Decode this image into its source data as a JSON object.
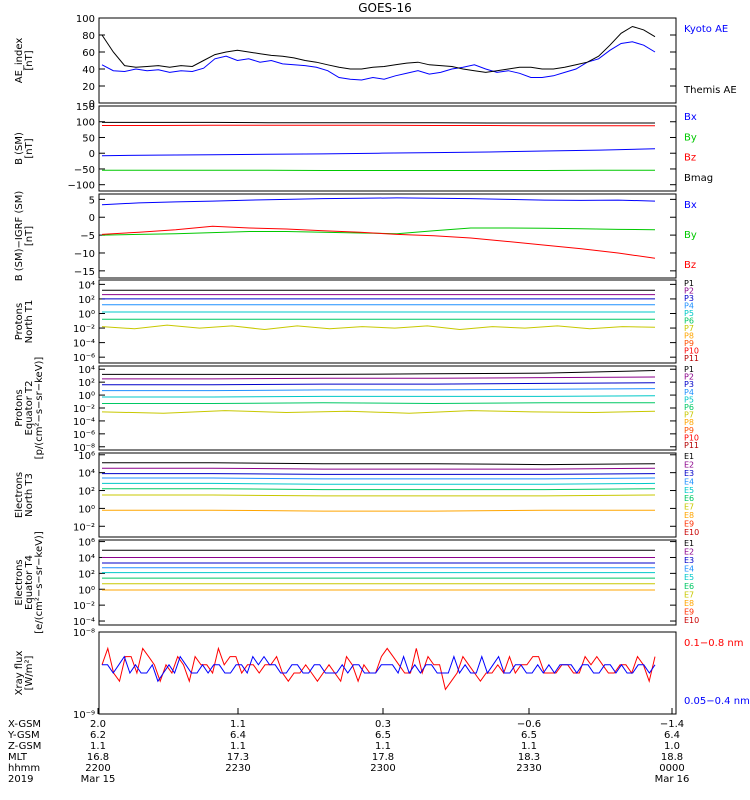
{
  "title": "GOES-16",
  "colors": {
    "black": "#000000",
    "blue": "#0000ff",
    "green": "#00c800",
    "red": "#ff0000"
  },
  "chart_data": [
    {
      "type": "line",
      "ylabel": [
        "AE_index",
        "[nT]"
      ],
      "yticks": [
        "100",
        "80",
        "60",
        "40",
        "20",
        "0"
      ],
      "ylim": [
        0,
        100
      ],
      "legend": [
        "Kyoto AE",
        "Themis AE"
      ],
      "legend_colors": [
        "#0000ff",
        "#000000"
      ],
      "series": [
        {
          "name": "Kyoto AE",
          "color": "#0000ff",
          "values": [
            45,
            38,
            37,
            40,
            38,
            39,
            36,
            38,
            37,
            41,
            52,
            55,
            50,
            52,
            48,
            50,
            46,
            45,
            44,
            42,
            38,
            30,
            28,
            27,
            30,
            28,
            32,
            35,
            38,
            34,
            36,
            40,
            42,
            45,
            40,
            36,
            38,
            35,
            30,
            30,
            32,
            36,
            40,
            48,
            52,
            62,
            70,
            72,
            68,
            60
          ]
        },
        {
          "name": "Themis AE",
          "color": "#000000",
          "values": [
            80,
            60,
            44,
            42,
            43,
            44,
            42,
            44,
            43,
            50,
            57,
            60,
            62,
            60,
            58,
            56,
            55,
            53,
            50,
            48,
            45,
            42,
            40,
            40,
            42,
            43,
            45,
            47,
            48,
            45,
            44,
            43,
            40,
            38,
            36,
            38,
            40,
            42,
            42,
            40,
            40,
            42,
            45,
            48,
            55,
            68,
            82,
            90,
            86,
            78
          ]
        }
      ]
    },
    {
      "type": "line",
      "ylabel": [
        "B (SM)",
        "[nT]"
      ],
      "yticks": [
        "150",
        "100",
        "50",
        "0",
        "−50",
        "−100"
      ],
      "ylim": [
        -120,
        150
      ],
      "legend": [
        "Bx",
        "By",
        "Bz",
        "Bmag"
      ],
      "legend_colors": [
        "#0000ff",
        "#00c800",
        "#ff0000",
        "#000000"
      ],
      "series": [
        {
          "name": "Bmag",
          "color": "#000000",
          "values": [
            98,
            98,
            98,
            97,
            97,
            97,
            97,
            96,
            96,
            96,
            96
          ]
        },
        {
          "name": "Bz",
          "color": "#ff0000",
          "values": [
            88,
            88,
            89,
            89,
            89,
            89,
            88,
            88,
            87,
            87,
            87
          ]
        },
        {
          "name": "Bx",
          "color": "#0000ff",
          "values": [
            -8,
            -6,
            -5,
            -3,
            -2,
            0,
            2,
            4,
            7,
            10,
            14
          ]
        },
        {
          "name": "By",
          "color": "#00c800",
          "values": [
            -54,
            -54,
            -54,
            -54,
            -55,
            -55,
            -55,
            -55,
            -55,
            -54,
            -54
          ]
        }
      ]
    },
    {
      "type": "line",
      "ylabel": [
        "B (SM)−IGRF (SM)",
        "[nT]"
      ],
      "yticks": [
        "5",
        "0",
        "−5",
        "−10",
        "−15"
      ],
      "ylim": [
        -17,
        6.5
      ],
      "legend": [
        "Bx",
        "By",
        "Bz"
      ],
      "legend_colors": [
        "#0000ff",
        "#00c800",
        "#ff0000"
      ],
      "series": [
        {
          "name": "Bx",
          "color": "#0000ff",
          "values": [
            3.5,
            4.0,
            4.3,
            4.5,
            4.8,
            5.0,
            5.2,
            5.3,
            5.4,
            5.3,
            5.2,
            5.0,
            4.8,
            4.7,
            4.8,
            4.5
          ]
        },
        {
          "name": "By",
          "color": "#00c800",
          "values": [
            -5.0,
            -4.8,
            -4.6,
            -4.3,
            -4.0,
            -4.0,
            -4.2,
            -4.4,
            -4.6,
            -3.8,
            -3.0,
            -3.0,
            -3.1,
            -3.2,
            -3.4,
            -3.5
          ]
        },
        {
          "name": "Bz",
          "color": "#ff0000",
          "values": [
            -4.8,
            -4.2,
            -3.5,
            -2.5,
            -3.0,
            -3.3,
            -3.8,
            -4.2,
            -4.8,
            -5.2,
            -5.8,
            -6.8,
            -7.8,
            -8.8,
            -10.0,
            -11.5
          ]
        }
      ]
    },
    {
      "type": "line",
      "scale": "log",
      "ylabel": [
        "Protons",
        "North T1"
      ],
      "yticks": [
        "10⁴",
        "10²",
        "10⁰",
        "10⁻²",
        "10⁻⁴",
        "10⁻⁶"
      ],
      "ylim_exp": [
        -6.8,
        4.6
      ],
      "legend": [
        "P1",
        "P2",
        "P3",
        "P4",
        "P5",
        "P6",
        "P7",
        "P8",
        "P9",
        "P10",
        "P11"
      ],
      "legend_colors": [
        "#000000",
        "#8b008b",
        "#0000c8",
        "#1e90ff",
        "#00c8c8",
        "#00c864",
        "#c8c800",
        "#ffa500",
        "#ff5000",
        "#ff0000",
        "#b40000"
      ],
      "series": [
        {
          "name": "P1",
          "color": "#000000",
          "values": [
            3.2,
            3.2
          ]
        },
        {
          "name": "P2",
          "color": "#8b008b",
          "values": [
            2.6,
            2.6
          ]
        },
        {
          "name": "P3",
          "color": "#0000c8",
          "values": [
            2.0,
            2.0
          ]
        },
        {
          "name": "P4",
          "color": "#1e90ff",
          "values": [
            1.2,
            1.2
          ]
        },
        {
          "name": "P5",
          "color": "#00c8c8",
          "values": [
            0.2,
            0.2
          ]
        },
        {
          "name": "P6",
          "color": "#00c864",
          "values": [
            -0.8,
            -0.8
          ]
        },
        {
          "name": "P7",
          "color": "#c8c800",
          "values": [
            -1.8,
            -2.1,
            -1.6,
            -2.0,
            -1.7,
            -2.2,
            -1.7,
            -2.1,
            -1.8,
            -2.0,
            -1.7,
            -2.2,
            -1.8,
            -2.0,
            -1.7,
            -2.1,
            -1.8,
            -1.9
          ]
        }
      ]
    },
    {
      "type": "line",
      "scale": "log",
      "ylabel": [
        "Protons",
        "Equator T2",
        "[p/(cm²−s−sr−keV)]"
      ],
      "yticks": [
        "10⁴",
        "10²",
        "10⁰",
        "10⁻²",
        "10⁻⁴",
        "10⁻⁶",
        "10⁻⁸"
      ],
      "ylim_exp": [
        -8.5,
        4.5
      ],
      "legend": [
        "P1",
        "P2",
        "P3",
        "P4",
        "P5",
        "P6",
        "P7",
        "P8",
        "P9",
        "P10",
        "P11"
      ],
      "legend_colors": [
        "#000000",
        "#8b008b",
        "#0000c8",
        "#1e90ff",
        "#00c8c8",
        "#00c864",
        "#c8c800",
        "#ffa500",
        "#ff5000",
        "#ff0000",
        "#b40000"
      ],
      "series": [
        {
          "name": "P1",
          "color": "#000000",
          "values": [
            3.2,
            3.2,
            3.2,
            3.3,
            3.4,
            3.8
          ]
        },
        {
          "name": "P2",
          "color": "#8b008b",
          "values": [
            2.5,
            2.5,
            2.6,
            2.6,
            2.7,
            2.8
          ]
        },
        {
          "name": "P3",
          "color": "#0000c8",
          "values": [
            1.6,
            1.6,
            1.7,
            1.7,
            1.8,
            1.9
          ]
        },
        {
          "name": "P4",
          "color": "#1e90ff",
          "values": [
            0.7,
            0.7,
            0.8,
            0.8,
            0.9,
            1.0
          ]
        },
        {
          "name": "P5",
          "color": "#00c8c8",
          "values": [
            -0.3,
            -0.3,
            -0.2,
            -0.2,
            -0.2,
            -0.1
          ]
        },
        {
          "name": "P6",
          "color": "#00c864",
          "values": [
            -1.3,
            -1.3,
            -1.2,
            -1.3,
            -1.2,
            -1.2
          ]
        },
        {
          "name": "P7",
          "color": "#c8c800",
          "values": [
            -2.6,
            -2.8,
            -2.4,
            -2.7,
            -2.5,
            -2.8,
            -2.4,
            -2.6,
            -2.7,
            -2.5
          ]
        }
      ]
    },
    {
      "type": "line",
      "scale": "log",
      "ylabel": [
        "Electrons",
        "North T3"
      ],
      "yticks": [
        "10⁶",
        "10⁴",
        "10²",
        "10⁰",
        "10⁻²"
      ],
      "ylim_exp": [
        -3.2,
        6.2
      ],
      "legend": [
        "E1",
        "E2",
        "E3",
        "E4",
        "E5",
        "E6",
        "E7",
        "E8",
        "E9",
        "E10"
      ],
      "legend_colors": [
        "#000000",
        "#8b008b",
        "#0000c8",
        "#1e90ff",
        "#00c8c8",
        "#00c864",
        "#c8c800",
        "#ffa500",
        "#ff3000",
        "#c80000"
      ],
      "series": [
        {
          "name": "E1",
          "color": "#000000",
          "values": [
            5.1,
            5.1,
            5.0,
            5.0,
            4.9,
            5.0
          ]
        },
        {
          "name": "E2",
          "color": "#8b008b",
          "values": [
            4.5,
            4.5,
            4.4,
            4.4,
            4.4,
            4.5
          ]
        },
        {
          "name": "E3",
          "color": "#0000c8",
          "values": [
            3.9,
            3.9,
            3.8,
            3.8,
            3.8,
            3.9
          ]
        },
        {
          "name": "E4",
          "color": "#1e90ff",
          "values": [
            3.4,
            3.4,
            3.3,
            3.3,
            3.3,
            3.4
          ]
        },
        {
          "name": "E5",
          "color": "#00c8c8",
          "values": [
            2.8,
            2.8,
            2.7,
            2.7,
            2.7,
            2.8
          ]
        },
        {
          "name": "E6",
          "color": "#00c864",
          "values": [
            2.2,
            2.2,
            2.1,
            2.1,
            2.1,
            2.2
          ]
        },
        {
          "name": "E7",
          "color": "#c8c800",
          "values": [
            1.5,
            1.5,
            1.4,
            1.4,
            1.4,
            1.5
          ]
        },
        {
          "name": "E8",
          "color": "#ffa500",
          "values": [
            -0.2,
            -0.2,
            -0.3,
            -0.3,
            -0.2,
            -0.2
          ]
        }
      ]
    },
    {
      "type": "line",
      "scale": "log",
      "ylabel": [
        "Electrons",
        "Equator T4",
        "[e/(cm²−s−sr−keV)]"
      ],
      "yticks": [
        "10⁶",
        "10⁴",
        "10²",
        "10⁰",
        "10⁻²",
        "10⁻⁴"
      ],
      "ylim_exp": [
        -4.5,
        6.2
      ],
      "legend": [
        "E1",
        "E2",
        "E3",
        "E4",
        "E5",
        "E6",
        "E7",
        "E8",
        "E9",
        "E10"
      ],
      "legend_colors": [
        "#000000",
        "#8b008b",
        "#0000c8",
        "#1e90ff",
        "#00c8c8",
        "#00c864",
        "#c8c800",
        "#ffa500",
        "#ff3000",
        "#c80000"
      ],
      "series": [
        {
          "name": "E1",
          "color": "#000000",
          "values": [
            4.9,
            4.9,
            4.9,
            4.9,
            4.9,
            4.9
          ]
        },
        {
          "name": "E2",
          "color": "#8b008b",
          "values": [
            4.0,
            4.0,
            4.0,
            4.0,
            4.0,
            4.0
          ]
        },
        {
          "name": "E3",
          "color": "#0000c8",
          "values": [
            3.3,
            3.3,
            3.3,
            3.3,
            3.3,
            3.3
          ]
        },
        {
          "name": "E4",
          "color": "#1e90ff",
          "values": [
            2.7,
            2.7,
            2.7,
            2.7,
            2.7,
            2.7
          ]
        },
        {
          "name": "E5",
          "color": "#00c8c8",
          "values": [
            2.1,
            2.1,
            2.1,
            2.1,
            2.1,
            2.1
          ]
        },
        {
          "name": "E6",
          "color": "#00c864",
          "values": [
            1.4,
            1.4,
            1.4,
            1.4,
            1.4,
            1.4
          ]
        },
        {
          "name": "E7",
          "color": "#c8c800",
          "values": [
            0.7,
            0.7,
            0.7,
            0.7,
            0.7,
            0.7
          ]
        },
        {
          "name": "E8",
          "color": "#ffa500",
          "values": [
            -0.1,
            -0.1,
            -0.1,
            -0.1,
            -0.1,
            -0.1
          ]
        }
      ]
    },
    {
      "type": "line",
      "scale": "log",
      "ylabel": [
        "Xray flux",
        "[W/m²]"
      ],
      "yticks": [
        "10⁻⁸",
        "10⁻⁹"
      ],
      "ylim_exp": [
        -9,
        -8
      ],
      "legend": [
        "0.1−0.8 nm",
        "0.05−0.4 nm"
      ],
      "legend_colors": [
        "#ff0000",
        "#0000ff"
      ],
      "series": [
        {
          "name": "0.1−0.8 nm",
          "color": "#ff0000",
          "values": [
            -8.4,
            -8.2,
            -8.5,
            -8.6,
            -8.3,
            -8.3,
            -8.5,
            -8.2,
            -8.3,
            -8.4,
            -8.6,
            -8.4,
            -8.5,
            -8.3,
            -8.4,
            -8.6,
            -8.3,
            -8.4,
            -8.4,
            -8.5,
            -8.2,
            -8.4,
            -8.3,
            -8.3,
            -8.5,
            -8.4,
            -8.4,
            -8.5,
            -8.4,
            -8.4,
            -8.3,
            -8.5,
            -8.6,
            -8.5,
            -8.5,
            -8.4,
            -8.5,
            -8.6,
            -8.5,
            -8.4,
            -8.5,
            -8.6,
            -8.3,
            -8.4,
            -8.6,
            -8.4,
            -8.5,
            -8.5,
            -8.3,
            -8.2,
            -8.3,
            -8.4,
            -8.5,
            -8.5,
            -8.2,
            -8.5,
            -8.3,
            -8.4,
            -8.4,
            -8.7,
            -8.6,
            -8.5,
            -8.3,
            -8.4,
            -8.5,
            -8.6,
            -8.5,
            -8.5,
            -8.4,
            -8.5,
            -8.3,
            -8.5,
            -8.4,
            -8.4,
            -8.3,
            -8.3,
            -8.5,
            -8.5,
            -8.5,
            -8.4,
            -8.4,
            -8.5,
            -8.5,
            -8.3,
            -8.4,
            -8.3,
            -8.4,
            -8.5,
            -8.5,
            -8.4,
            -8.4,
            -8.5,
            -8.3,
            -8.4,
            -8.6,
            -8.3
          ]
        },
        {
          "name": "0.05−0.4 nm",
          "color": "#0000ff",
          "values": [
            -8.4,
            -8.4,
            -8.5,
            -8.4,
            -8.3,
            -8.5,
            -8.4,
            -8.5,
            -8.5,
            -8.4,
            -8.6,
            -8.5,
            -8.4,
            -8.5,
            -8.3,
            -8.4,
            -8.5,
            -8.5,
            -8.4,
            -8.5,
            -8.4,
            -8.4,
            -8.5,
            -8.5,
            -8.4,
            -8.4,
            -8.5,
            -8.3,
            -8.4,
            -8.3,
            -8.4,
            -8.4,
            -8.5,
            -8.5,
            -8.4,
            -8.4,
            -8.5,
            -8.5,
            -8.4,
            -8.4,
            -8.5,
            -8.5,
            -8.5,
            -8.4,
            -8.5,
            -8.4,
            -8.4,
            -8.5,
            -8.5,
            -8.5,
            -8.4,
            -8.4,
            -8.4,
            -8.5,
            -8.3,
            -8.5,
            -8.4,
            -8.5,
            -8.4,
            -8.4,
            -8.5,
            -8.5,
            -8.5,
            -8.3,
            -8.5,
            -8.4,
            -8.5,
            -8.5,
            -8.3,
            -8.5,
            -8.4,
            -8.3,
            -8.5,
            -8.5,
            -8.4,
            -8.4,
            -8.5,
            -8.5,
            -8.4,
            -8.5,
            -8.4,
            -8.5,
            -8.4,
            -8.4,
            -8.4,
            -8.5,
            -8.4,
            -8.4,
            -8.5,
            -8.5,
            -8.4,
            -8.4,
            -8.5,
            -8.4,
            -8.5,
            -8.5,
            -8.4,
            -8.4,
            -8.5,
            -8.4
          ]
        }
      ]
    }
  ],
  "axis_table": {
    "labels": [
      "X-GSM",
      "Y-GSM",
      "Z-GSM",
      "MLT",
      "hhmm",
      "2019"
    ],
    "columns": [
      [
        "2.0",
        "6.2",
        "1.1",
        "16.8",
        "2200",
        "Mar 15"
      ],
      [
        "1.1",
        "6.4",
        "1.1",
        "17.3",
        "2230",
        ""
      ],
      [
        "0.3",
        "6.5",
        "1.1",
        "17.8",
        "2300",
        ""
      ],
      [
        "−0.6",
        "6.5",
        "1.1",
        "18.3",
        "2330",
        ""
      ],
      [
        "−1.4",
        "6.4",
        "1.0",
        "18.8",
        "0000",
        "Mar 16"
      ]
    ]
  }
}
